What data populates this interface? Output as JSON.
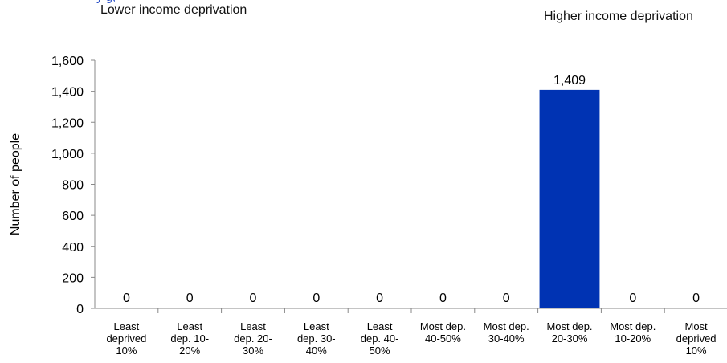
{
  "header": {
    "left_caption": "Lower income deprivation",
    "right_caption": "Higher income deprivation"
  },
  "colors": {
    "bar": "#0033b3",
    "axis": "#888888"
  },
  "chart_data": {
    "type": "bar",
    "ylabel": "Number of people",
    "ylim": [
      0,
      1600
    ],
    "yticks": [
      "0",
      "200",
      "400",
      "600",
      "800",
      "1,000",
      "1,200",
      "1,400",
      "1,600"
    ],
    "categories": [
      [
        "Least",
        "deprived",
        "10%"
      ],
      [
        "Least",
        "dep. 10-",
        "20%"
      ],
      [
        "Least",
        "dep. 20-",
        "30%"
      ],
      [
        "Least",
        "dep. 30-",
        "40%"
      ],
      [
        "Least",
        "dep. 40-",
        "50%"
      ],
      [
        "Most dep.",
        "40-50%"
      ],
      [
        "Most dep.",
        "30-40%"
      ],
      [
        "Most dep.",
        "20-30%"
      ],
      [
        "Most dep.",
        "10-20%"
      ],
      [
        "Most",
        "deprived",
        "10%"
      ]
    ],
    "values": [
      0,
      0,
      0,
      0,
      0,
      0,
      0,
      1409,
      0,
      0
    ],
    "data_labels": [
      "0",
      "0",
      "0",
      "0",
      "0",
      "0",
      "0",
      "1,409",
      "0",
      "0"
    ],
    "grid": false,
    "legend": "none"
  }
}
